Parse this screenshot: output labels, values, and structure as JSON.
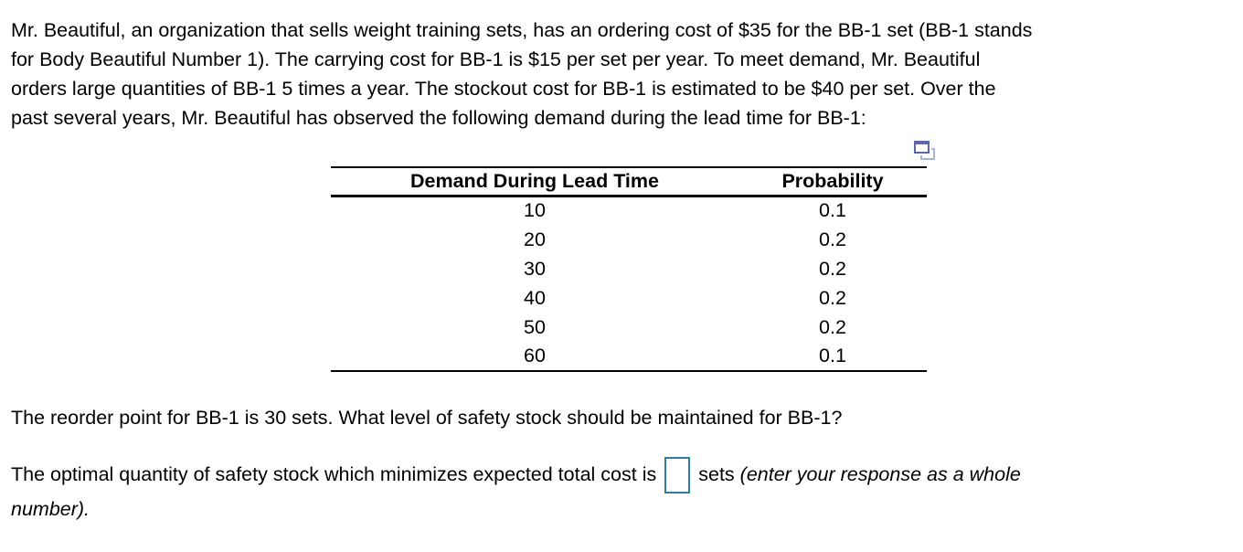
{
  "problem": {
    "lines": [
      "Mr. Beautiful, an organization that sells weight training sets, has an ordering cost of $35 for the BB-1 set (BB-1 stands",
      "for Body Beautiful Number 1). The carrying cost for BB-1 is $15 per set per year. To meet demand, Mr. Beautiful",
      "orders large quantities of BB-1 5 times a year. The stockout cost for BB-1 is estimated to be $40 per set. Over the",
      "past several years, Mr. Beautiful has observed the following demand during the lead time for BB-1:"
    ]
  },
  "table": {
    "icon": "popout-windows-icon",
    "headers": {
      "demand": "Demand During Lead Time",
      "probability": "Probability"
    },
    "rows": [
      {
        "demand": "10",
        "probability": "0.1"
      },
      {
        "demand": "20",
        "probability": "0.2"
      },
      {
        "demand": "30",
        "probability": "0.2"
      },
      {
        "demand": "40",
        "probability": "0.2"
      },
      {
        "demand": "50",
        "probability": "0.2"
      },
      {
        "demand": "60",
        "probability": "0.1"
      }
    ]
  },
  "question": {
    "reorder_sentence": "The reorder point for BB-1 is 30 sets. What level of safety stock should be maintained for BB-1?"
  },
  "answer": {
    "prefix": "The optimal quantity of safety stock which minimizes expected total cost is",
    "input_value": "",
    "unit": "sets",
    "note_line1": "(enter your response as a whole",
    "note_line2": "number)."
  },
  "colors": {
    "input_border": "#2e7da3",
    "icon_front": "#5a66ae",
    "icon_back": "#a9b2d9"
  }
}
